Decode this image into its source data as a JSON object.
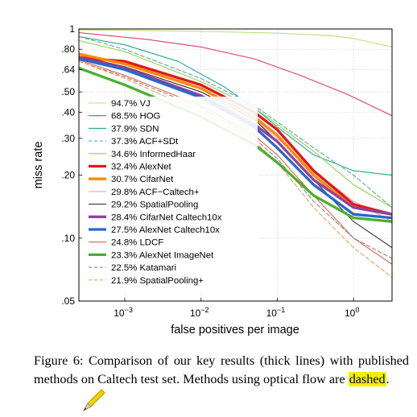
{
  "caption": {
    "text_before": "Figure 6: Comparison of our key results (thick lines) with published methods on Caltech test set. Methods using optical flow are ",
    "highlighted": "dashed",
    "text_after": "."
  },
  "annotation": {
    "icon": "pencil-icon",
    "highlight_color": "#f3f000"
  },
  "chart_data": {
    "type": "line",
    "xlabel": "false positives per image",
    "ylabel": "miss rate",
    "xscale": "log",
    "yscale": "log",
    "xlim": [
      0.00025,
      3.2
    ],
    "ylim": [
      0.05,
      1
    ],
    "xticks": [
      {
        "value": 0.001,
        "base": "10",
        "exp": "−3"
      },
      {
        "value": 0.01,
        "base": "10",
        "exp": "−2"
      },
      {
        "value": 0.1,
        "base": "10",
        "exp": "−1"
      },
      {
        "value": 1,
        "base": "10",
        "exp": "0"
      }
    ],
    "yticks": [
      {
        "value": 1,
        "label": "1"
      },
      {
        "value": 0.8,
        "label": ".80"
      },
      {
        "value": 0.64,
        "label": ".64"
      },
      {
        "value": 0.5,
        "label": ".50"
      },
      {
        "value": 0.4,
        "label": ".40"
      },
      {
        "value": 0.3,
        "label": ".30"
      },
      {
        "value": 0.2,
        "label": ".20"
      },
      {
        "value": 0.1,
        "label": ".10"
      },
      {
        "value": 0.05,
        "label": ".05"
      }
    ],
    "grid": true,
    "legend": "left-center",
    "series": [
      {
        "name": "94.7% VJ",
        "color": "#b8e07a",
        "width": 1,
        "dashed": false,
        "x": [
          0.00025,
          0.001,
          0.01,
          0.1,
          0.5,
          1,
          3.2
        ],
        "y": [
          0.99,
          0.985,
          0.975,
          0.955,
          0.93,
          0.9,
          0.82
        ]
      },
      {
        "name": "68.5% HOG",
        "color": "#e04060",
        "width": 1,
        "dashed": false,
        "x": [
          0.00025,
          0.0006,
          0.002,
          0.01,
          0.05,
          0.2,
          0.8,
          3.2
        ],
        "y": [
          0.96,
          0.93,
          0.89,
          0.82,
          0.72,
          0.6,
          0.49,
          0.385
        ]
      },
      {
        "name": "37.9% SDN",
        "color": "#2ca58d",
        "width": 1,
        "dashed": false,
        "x": [
          0.00025,
          0.001,
          0.005,
          0.02,
          0.05,
          0.1,
          0.3,
          1,
          3.2
        ],
        "y": [
          0.92,
          0.84,
          0.7,
          0.53,
          0.42,
          0.34,
          0.25,
          0.21,
          0.2
        ]
      },
      {
        "name": "37.3% ACF+SDt",
        "color": "#50b0a0",
        "width": 1,
        "dashed": true,
        "x": [
          0.00025,
          0.001,
          0.01,
          0.05,
          0.1,
          0.3,
          1,
          3.2
        ],
        "y": [
          0.92,
          0.8,
          0.58,
          0.43,
          0.36,
          0.27,
          0.2,
          0.14
        ]
      },
      {
        "name": "34.6% InformedHaar",
        "color": "#9acd50",
        "width": 1,
        "dashed": false,
        "x": [
          0.00025,
          0.001,
          0.01,
          0.05,
          0.1,
          0.3,
          1,
          3.2
        ],
        "y": [
          0.88,
          0.78,
          0.56,
          0.42,
          0.35,
          0.26,
          0.18,
          0.14
        ]
      },
      {
        "name": "32.4% AlexNet",
        "color": "#e01818",
        "width": 3,
        "dashed": false,
        "x": [
          0.00025,
          0.001,
          0.01,
          0.05,
          0.1,
          0.3,
          1,
          3.2
        ],
        "y": [
          0.73,
          0.7,
          0.54,
          0.4,
          0.33,
          0.21,
          0.145,
          0.13
        ]
      },
      {
        "name": "30.7% CifarNet",
        "color": "#ff8800",
        "width": 3,
        "dashed": false,
        "x": [
          0.00025,
          0.001,
          0.01,
          0.05,
          0.1,
          0.3,
          1,
          3.2
        ],
        "y": [
          0.76,
          0.68,
          0.52,
          0.38,
          0.31,
          0.2,
          0.14,
          0.13
        ]
      },
      {
        "name": "29.8% ACF−Caltech+",
        "color": "#f2a0b0",
        "width": 1,
        "dashed": false,
        "x": [
          0.00025,
          0.001,
          0.01,
          0.05,
          0.1,
          0.3,
          1,
          3.2
        ],
        "y": [
          0.75,
          0.66,
          0.5,
          0.37,
          0.3,
          0.21,
          0.15,
          0.12
        ]
      },
      {
        "name": "29.2% SpatialPooling",
        "color": "#333333",
        "width": 1,
        "dashed": false,
        "x": [
          0.00025,
          0.001,
          0.01,
          0.05,
          0.1,
          0.3,
          1,
          3.2
        ],
        "y": [
          0.74,
          0.66,
          0.5,
          0.37,
          0.29,
          0.19,
          0.12,
          0.09
        ]
      },
      {
        "name": "28.4% CifarNet  Caltech10x",
        "color": "#9040a0",
        "width": 3,
        "dashed": false,
        "x": [
          0.00025,
          0.001,
          0.01,
          0.05,
          0.1,
          0.3,
          1,
          3.2
        ],
        "y": [
          0.73,
          0.65,
          0.48,
          0.35,
          0.29,
          0.19,
          0.14,
          0.13
        ]
      },
      {
        "name": "27.5% AlexNet  Caltech10x",
        "color": "#2868c8",
        "width": 3,
        "dashed": false,
        "x": [
          0.00025,
          0.001,
          0.01,
          0.05,
          0.1,
          0.3,
          1,
          3.2
        ],
        "y": [
          0.72,
          0.64,
          0.47,
          0.34,
          0.27,
          0.18,
          0.13,
          0.125
        ]
      },
      {
        "name": "24.8% LDCF",
        "color": "#e8604a",
        "width": 1,
        "dashed": false,
        "x": [
          0.00025,
          0.001,
          0.01,
          0.05,
          0.1,
          0.3,
          1,
          3.2
        ],
        "y": [
          0.71,
          0.6,
          0.43,
          0.31,
          0.25,
          0.16,
          0.1,
          0.075
        ]
      },
      {
        "name": "23.3% AlexNet  ImageNet",
        "color": "#4caf30",
        "width": 3,
        "dashed": false,
        "x": [
          0.00025,
          0.001,
          0.01,
          0.05,
          0.1,
          0.3,
          1,
          3.2
        ],
        "y": [
          0.65,
          0.54,
          0.38,
          0.28,
          0.23,
          0.16,
          0.125,
          0.12
        ]
      },
      {
        "name": "22.5% Katamari",
        "color": "#8a8a8a",
        "width": 1,
        "dashed": true,
        "x": [
          0.00025,
          0.001,
          0.01,
          0.05,
          0.1,
          0.3,
          1,
          3.2
        ],
        "y": [
          0.7,
          0.59,
          0.42,
          0.3,
          0.24,
          0.15,
          0.1,
          0.08
        ]
      },
      {
        "name": "21.9% SpatialPooling+",
        "color": "#f0a060",
        "width": 1,
        "dashed": true,
        "x": [
          0.00025,
          0.001,
          0.01,
          0.05,
          0.1,
          0.3,
          1,
          3.2
        ],
        "y": [
          0.7,
          0.58,
          0.4,
          0.29,
          0.23,
          0.14,
          0.09,
          0.065
        ]
      }
    ]
  }
}
